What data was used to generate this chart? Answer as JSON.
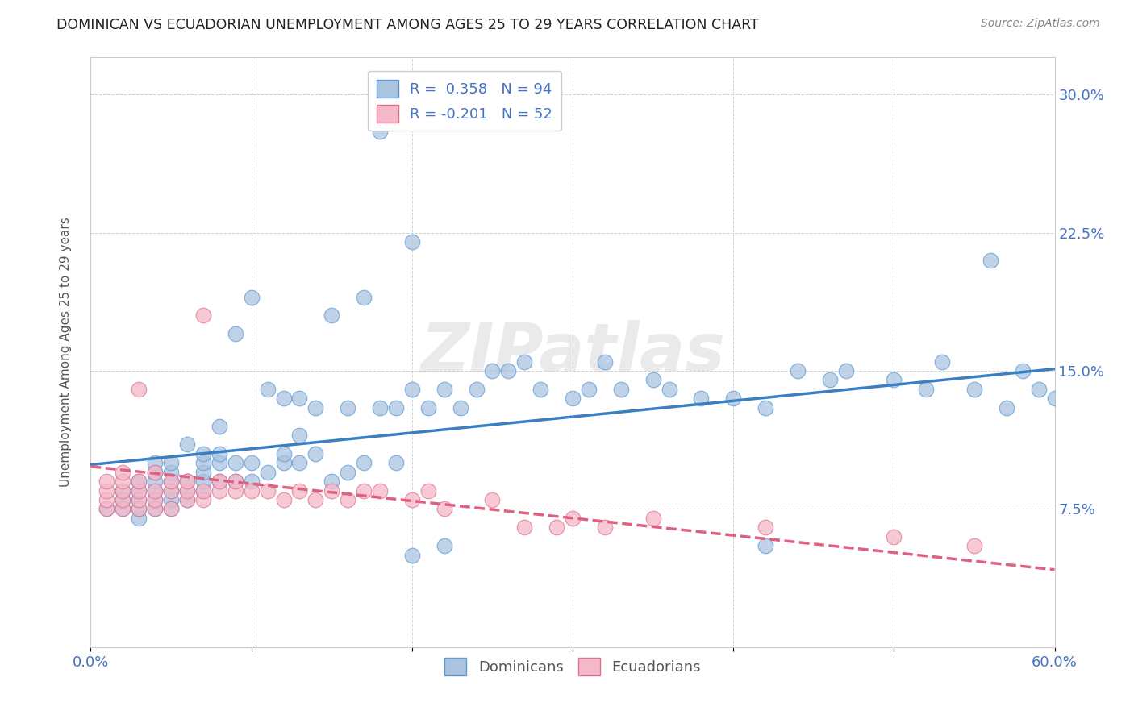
{
  "title": "DOMINICAN VS ECUADORIAN UNEMPLOYMENT AMONG AGES 25 TO 29 YEARS CORRELATION CHART",
  "source": "Source: ZipAtlas.com",
  "ylabel": "Unemployment Among Ages 25 to 29 years",
  "xlim": [
    0.0,
    0.6
  ],
  "ylim": [
    0.0,
    0.32
  ],
  "xticks": [
    0.0,
    0.1,
    0.2,
    0.3,
    0.4,
    0.5,
    0.6
  ],
  "yticks": [
    0.0,
    0.075,
    0.15,
    0.225,
    0.3
  ],
  "ytick_labels_right": [
    "",
    "7.5%",
    "15.0%",
    "22.5%",
    "30.0%"
  ],
  "xtick_labels": [
    "0.0%",
    "",
    "",
    "",
    "",
    "",
    "60.0%"
  ],
  "grid_color": "#cccccc",
  "background_color": "#ffffff",
  "dominicans_color": "#aac4e0",
  "dominicans_edge_color": "#5b9bd5",
  "ecuadorians_color": "#f4b8c8",
  "ecuadorians_edge_color": "#e07090",
  "dominicans_line_color": "#3a7fc1",
  "ecuadorians_line_color": "#e06080",
  "watermark": "ZIPatlas",
  "legend_R_dominicans": "0.358",
  "legend_N_dominicans": "94",
  "legend_R_ecuadorians": "-0.201",
  "legend_N_ecuadorians": "52",
  "dom_line_x0": 0.0,
  "dom_line_x1": 0.6,
  "dom_line_y0": 0.099,
  "dom_line_y1": 0.151,
  "ecu_line_x0": 0.0,
  "ecu_line_x1": 0.6,
  "ecu_line_y0": 0.098,
  "ecu_line_y1": 0.042,
  "dominicans_x": [
    0.01,
    0.02,
    0.02,
    0.02,
    0.03,
    0.03,
    0.03,
    0.03,
    0.03,
    0.04,
    0.04,
    0.04,
    0.04,
    0.04,
    0.04,
    0.05,
    0.05,
    0.05,
    0.05,
    0.05,
    0.05,
    0.06,
    0.06,
    0.06,
    0.06,
    0.07,
    0.07,
    0.07,
    0.07,
    0.07,
    0.08,
    0.08,
    0.08,
    0.08,
    0.09,
    0.09,
    0.09,
    0.1,
    0.1,
    0.1,
    0.11,
    0.11,
    0.12,
    0.12,
    0.12,
    0.13,
    0.13,
    0.13,
    0.14,
    0.14,
    0.15,
    0.15,
    0.16,
    0.16,
    0.17,
    0.17,
    0.18,
    0.19,
    0.19,
    0.2,
    0.2,
    0.21,
    0.22,
    0.23,
    0.24,
    0.25,
    0.26,
    0.27,
    0.28,
    0.3,
    0.31,
    0.32,
    0.33,
    0.35,
    0.36,
    0.38,
    0.4,
    0.42,
    0.44,
    0.46,
    0.47,
    0.5,
    0.52,
    0.53,
    0.55,
    0.56,
    0.57,
    0.58,
    0.59,
    0.6,
    0.18,
    0.2,
    0.22,
    0.42
  ],
  "dominicans_y": [
    0.075,
    0.075,
    0.08,
    0.085,
    0.07,
    0.075,
    0.08,
    0.085,
    0.09,
    0.075,
    0.08,
    0.085,
    0.09,
    0.095,
    0.1,
    0.075,
    0.08,
    0.085,
    0.09,
    0.095,
    0.1,
    0.08,
    0.085,
    0.09,
    0.11,
    0.085,
    0.09,
    0.095,
    0.1,
    0.105,
    0.09,
    0.1,
    0.105,
    0.12,
    0.09,
    0.1,
    0.17,
    0.09,
    0.1,
    0.19,
    0.095,
    0.14,
    0.1,
    0.105,
    0.135,
    0.1,
    0.115,
    0.135,
    0.105,
    0.13,
    0.09,
    0.18,
    0.095,
    0.13,
    0.1,
    0.19,
    0.13,
    0.1,
    0.13,
    0.14,
    0.22,
    0.13,
    0.14,
    0.13,
    0.14,
    0.15,
    0.15,
    0.155,
    0.14,
    0.135,
    0.14,
    0.155,
    0.14,
    0.145,
    0.14,
    0.135,
    0.135,
    0.13,
    0.15,
    0.145,
    0.15,
    0.145,
    0.14,
    0.155,
    0.14,
    0.21,
    0.13,
    0.15,
    0.14,
    0.135,
    0.28,
    0.05,
    0.055,
    0.055
  ],
  "ecuadorians_x": [
    0.01,
    0.01,
    0.01,
    0.01,
    0.02,
    0.02,
    0.02,
    0.02,
    0.02,
    0.03,
    0.03,
    0.03,
    0.03,
    0.03,
    0.04,
    0.04,
    0.04,
    0.04,
    0.05,
    0.05,
    0.05,
    0.06,
    0.06,
    0.06,
    0.07,
    0.07,
    0.07,
    0.08,
    0.08,
    0.09,
    0.09,
    0.1,
    0.11,
    0.12,
    0.13,
    0.14,
    0.15,
    0.16,
    0.17,
    0.18,
    0.2,
    0.21,
    0.22,
    0.25,
    0.27,
    0.29,
    0.3,
    0.32,
    0.35,
    0.42,
    0.5,
    0.55
  ],
  "ecuadorians_y": [
    0.075,
    0.08,
    0.085,
    0.09,
    0.075,
    0.08,
    0.085,
    0.09,
    0.095,
    0.075,
    0.08,
    0.085,
    0.09,
    0.14,
    0.075,
    0.08,
    0.085,
    0.095,
    0.075,
    0.085,
    0.09,
    0.08,
    0.085,
    0.09,
    0.08,
    0.085,
    0.18,
    0.085,
    0.09,
    0.085,
    0.09,
    0.085,
    0.085,
    0.08,
    0.085,
    0.08,
    0.085,
    0.08,
    0.085,
    0.085,
    0.08,
    0.085,
    0.075,
    0.08,
    0.065,
    0.065,
    0.07,
    0.065,
    0.07,
    0.065,
    0.06,
    0.055
  ]
}
